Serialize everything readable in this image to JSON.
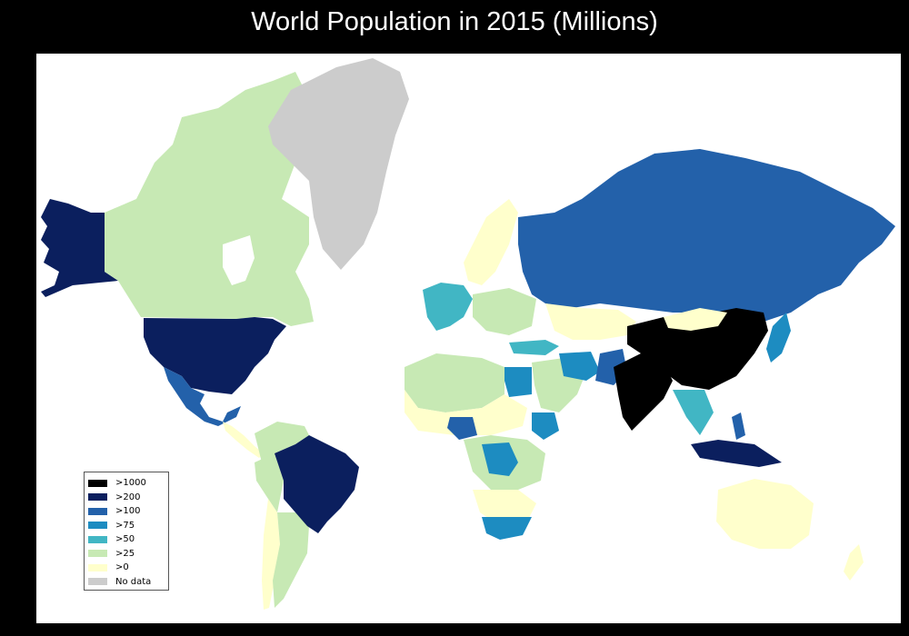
{
  "title": "World Population in 2015 (Millions)",
  "colors": {
    "gt1000": "#000000",
    "gt200": "#0b1f5e",
    "gt100": "#2361aa",
    "gt75": "#1d8cc1",
    "gt50": "#41b6c4",
    "gt25": "#c7e9b4",
    "gt0": "#ffffcc",
    "nodata": "#cccccc"
  },
  "legend": [
    {
      "label": ">1000",
      "color": "#000000"
    },
    {
      "label": ">200",
      "color": "#0b1f5e"
    },
    {
      "label": ">100",
      "color": "#2361aa"
    },
    {
      "label": ">75",
      "color": "#1d8cc1"
    },
    {
      "label": ">50",
      "color": "#41b6c4"
    },
    {
      "label": ">25",
      "color": "#c7e9b4"
    },
    {
      "label": ">0",
      "color": "#ffffcc"
    },
    {
      "label": "No data",
      "color": "#cccccc"
    }
  ],
  "regions": [
    {
      "name": "Alaska (USA)",
      "class": "gt200"
    },
    {
      "name": "Canada",
      "class": "gt25"
    },
    {
      "name": "Greenland",
      "class": "nodata"
    },
    {
      "name": "United States",
      "class": "gt200"
    },
    {
      "name": "Mexico",
      "class": "gt100"
    },
    {
      "name": "Brazil",
      "class": "gt200"
    },
    {
      "name": "Russia",
      "class": "gt100"
    },
    {
      "name": "China",
      "class": "gt1000"
    },
    {
      "name": "India",
      "class": "gt1000"
    },
    {
      "name": "Indonesia",
      "class": "gt200"
    },
    {
      "name": "Australia",
      "class": "gt0"
    },
    {
      "name": "Nigeria",
      "class": "gt100"
    },
    {
      "name": "Ethiopia",
      "class": "gt75"
    },
    {
      "name": "Egypt",
      "class": "gt75"
    },
    {
      "name": "DR Congo",
      "class": "gt75"
    },
    {
      "name": "South Africa",
      "class": "gt50"
    },
    {
      "name": "Iran",
      "class": "gt75"
    },
    {
      "name": "Turkey",
      "class": "gt75"
    },
    {
      "name": "Pakistan",
      "class": "gt100"
    },
    {
      "name": "Japan",
      "class": "gt100"
    },
    {
      "name": "Philippines",
      "class": "gt100"
    }
  ]
}
